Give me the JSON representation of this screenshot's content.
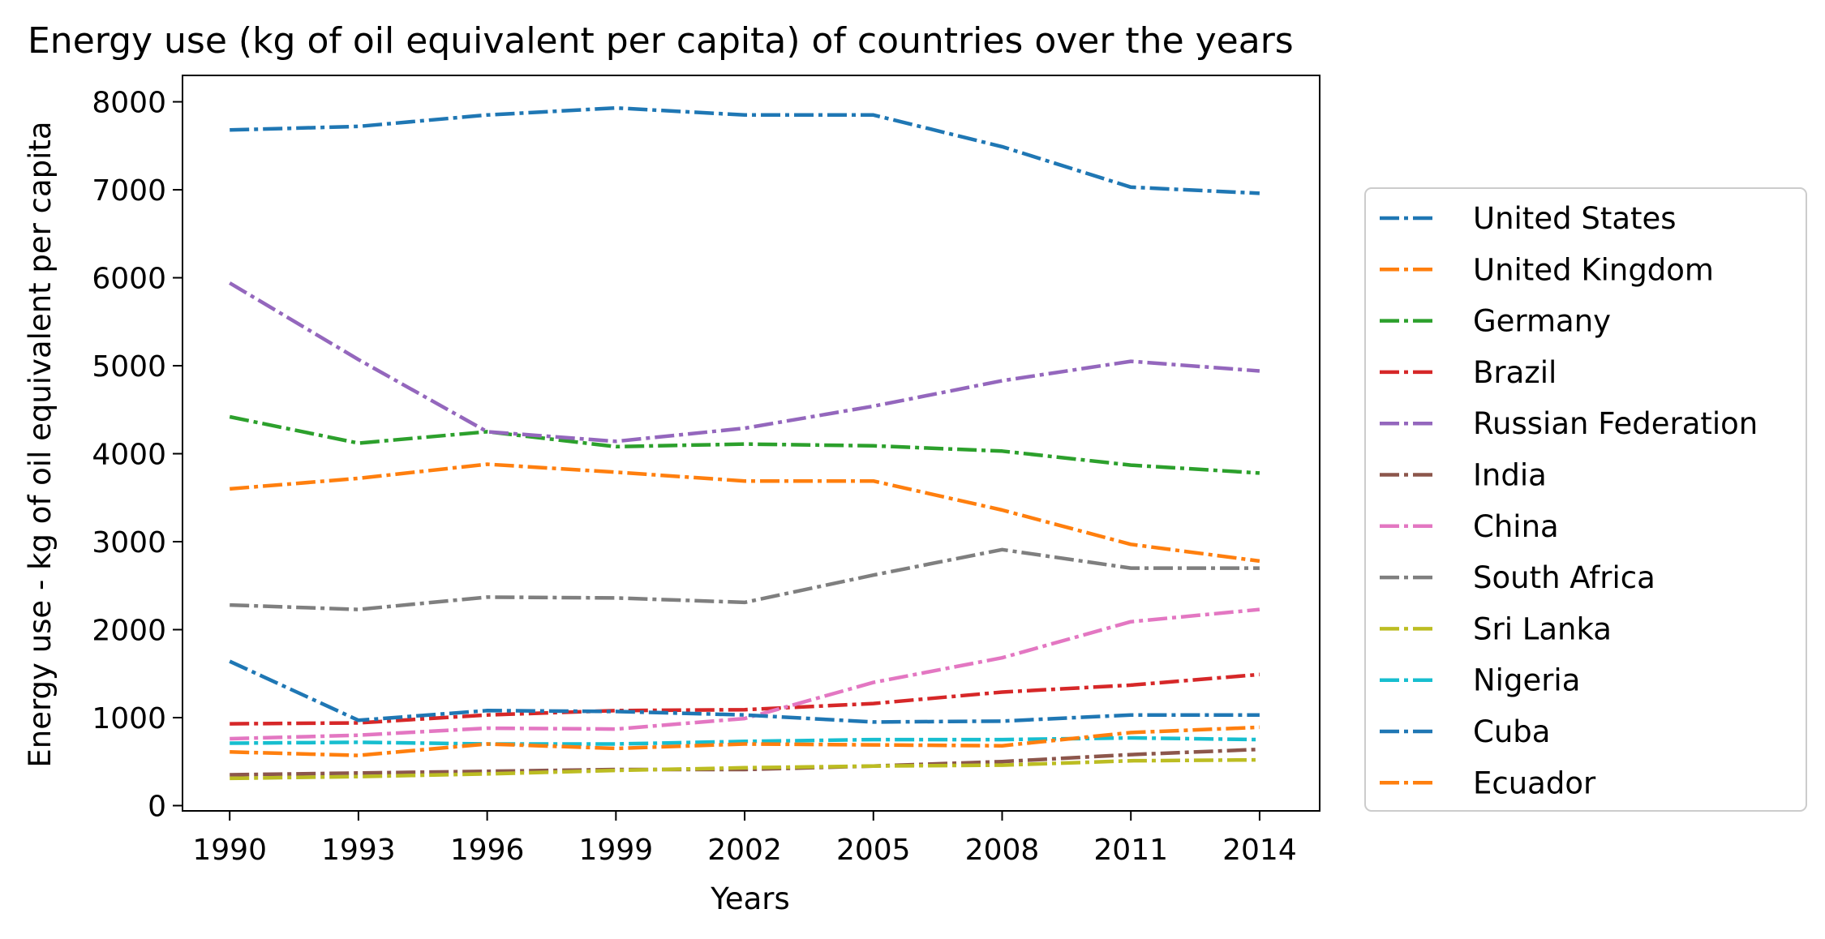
{
  "chart_data": {
    "type": "line",
    "title": "Energy use (kg of oil equivalent per capita) of countries over the years",
    "xlabel": "Years",
    "ylabel": "Energy use - kg of oil equivalent per capita",
    "x": [
      1990,
      1993,
      1996,
      1999,
      2002,
      2005,
      2008,
      2011,
      2014
    ],
    "x_tick_labels": [
      "1990",
      "1993",
      "1996",
      "1999",
      "2002",
      "2005",
      "2008",
      "2011",
      "2014"
    ],
    "ylim": [
      -60,
      8300
    ],
    "y_ticks": [
      0,
      1000,
      2000,
      3000,
      4000,
      5000,
      6000,
      7000,
      8000
    ],
    "y_tick_labels": [
      "0",
      "1000",
      "2000",
      "3000",
      "4000",
      "5000",
      "6000",
      "7000",
      "8000"
    ],
    "line_style": "dash-dot",
    "grid": false,
    "legend_position": "right",
    "series": [
      {
        "name": "United States",
        "color": "#1f77b4",
        "values": [
          7680,
          7720,
          7850,
          7930,
          7850,
          7850,
          7490,
          7030,
          6960
        ]
      },
      {
        "name": "United Kingdom",
        "color": "#ff7f0e",
        "values": [
          3600,
          3720,
          3880,
          3790,
          3690,
          3690,
          3360,
          2970,
          2780
        ]
      },
      {
        "name": "Germany",
        "color": "#2ca02c",
        "values": [
          4420,
          4120,
          4250,
          4080,
          4110,
          4090,
          4030,
          3870,
          3780
        ]
      },
      {
        "name": "Brazil",
        "color": "#d62728",
        "values": [
          930,
          940,
          1030,
          1080,
          1090,
          1160,
          1290,
          1370,
          1490
        ]
      },
      {
        "name": "Russian Federation",
        "color": "#9467bd",
        "values": [
          5940,
          5070,
          4250,
          4140,
          4290,
          4540,
          4830,
          5050,
          4940
        ]
      },
      {
        "name": "India",
        "color": "#8c564b",
        "values": [
          350,
          370,
          390,
          410,
          410,
          450,
          500,
          580,
          640
        ]
      },
      {
        "name": "China",
        "color": "#e377c2",
        "values": [
          760,
          800,
          880,
          870,
          990,
          1400,
          1680,
          2090,
          2230
        ]
      },
      {
        "name": "South Africa",
        "color": "#7f7f7f",
        "values": [
          2280,
          2230,
          2370,
          2360,
          2310,
          2620,
          2910,
          2700,
          2700
        ]
      },
      {
        "name": "Sri Lanka",
        "color": "#bcbd22",
        "values": [
          310,
          330,
          360,
          400,
          430,
          450,
          460,
          510,
          520
        ]
      },
      {
        "name": "Nigeria",
        "color": "#17becf",
        "values": [
          710,
          720,
          700,
          700,
          730,
          750,
          750,
          770,
          750
        ]
      },
      {
        "name": "Cuba",
        "color": "#1f77b4",
        "values": [
          1640,
          970,
          1080,
          1070,
          1030,
          950,
          960,
          1030,
          1030
        ]
      },
      {
        "name": "Ecuador",
        "color": "#ff7f0e",
        "values": [
          610,
          570,
          700,
          650,
          700,
          690,
          680,
          830,
          890
        ]
      }
    ]
  }
}
